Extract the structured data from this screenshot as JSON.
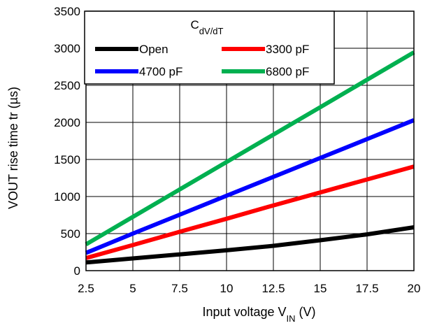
{
  "chart_data": {
    "type": "line",
    "xlabel": {
      "main": "Input voltage V",
      "sub": "IN",
      "unit": " (V)"
    },
    "ylabel": "VOUT rise time tr (µs)",
    "xlim": [
      2.5,
      20
    ],
    "ylim": [
      0,
      3500
    ],
    "xticks": [
      2.5,
      5,
      7.5,
      10,
      12.5,
      15,
      17.5,
      20
    ],
    "xtick_labels": [
      "2.5",
      "5",
      "7.5",
      "10",
      "12.5",
      "15",
      "17.5",
      "20"
    ],
    "yticks": [
      0,
      500,
      1000,
      1500,
      2000,
      2500,
      3000,
      3500
    ],
    "ytick_labels": [
      "0",
      "500",
      "1000",
      "1500",
      "2000",
      "2500",
      "3000",
      "3500"
    ],
    "grid": true,
    "legend": {
      "placement": "top-left",
      "title_main": "C",
      "title_sub": "dV/dT"
    },
    "series": [
      {
        "name": "Open",
        "color": "#000000",
        "x": [
          2.5,
          5,
          7.5,
          10,
          12.5,
          15,
          17.5,
          20
        ],
        "y": [
          110,
          165,
          220,
          275,
          335,
          410,
          490,
          585
        ]
      },
      {
        "name": "3300 pF",
        "color": "#ff0000",
        "x": [
          2.5,
          5,
          7.5,
          10,
          12.5,
          15,
          17.5,
          20
        ],
        "y": [
          170,
          345,
          525,
          700,
          880,
          1055,
          1230,
          1405
        ]
      },
      {
        "name": "4700 pF",
        "color": "#0000ff",
        "x": [
          2.5,
          5,
          7.5,
          10,
          12.5,
          15,
          17.5,
          20
        ],
        "y": [
          240,
          500,
          755,
          1010,
          1265,
          1520,
          1775,
          2030
        ]
      },
      {
        "name": "6800 pF",
        "color": "#00b050",
        "x": [
          2.5,
          5,
          7.5,
          10,
          12.5,
          15,
          17.5,
          20
        ],
        "y": [
          355,
          725,
          1095,
          1465,
          1835,
          2205,
          2575,
          2945
        ]
      }
    ]
  }
}
